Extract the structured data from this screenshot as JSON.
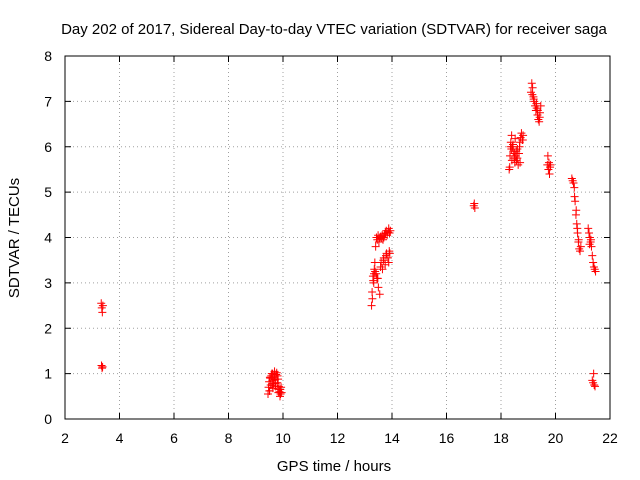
{
  "chart_data": {
    "type": "scatter",
    "title": "Day 202 of 2017, Sidereal Day-to-day VTEC variation (SDTVAR) for receiver saga",
    "xlabel": "GPS time / hours",
    "ylabel": "SDTVAR / TECUs",
    "xlim": [
      2,
      22
    ],
    "ylim": [
      0,
      8
    ],
    "xticks": [
      "2",
      "4",
      "6",
      "8",
      "10",
      "12",
      "14",
      "16",
      "18",
      "20",
      "22"
    ],
    "yticks": [
      "0",
      "1",
      "2",
      "3",
      "4",
      "5",
      "6",
      "7",
      "8"
    ],
    "grid": true,
    "marker": "plus",
    "color": "#ff0000",
    "series": [
      {
        "name": "SDTVAR",
        "x": [
          3.33,
          3.35,
          3.37,
          3.39,
          3.34,
          3.36,
          3.38,
          9.45,
          9.47,
          9.49,
          9.51,
          9.53,
          9.55,
          9.57,
          9.59,
          9.61,
          9.63,
          9.65,
          9.67,
          9.69,
          9.71,
          9.73,
          9.75,
          9.77,
          9.79,
          9.81,
          9.83,
          9.85,
          9.87,
          9.89,
          9.91,
          9.93,
          9.5,
          9.6,
          9.7,
          9.8,
          9.9,
          9.95,
          9.52,
          9.62,
          9.72,
          9.82,
          13.25,
          13.28,
          13.31,
          13.34,
          13.37,
          13.4,
          13.43,
          13.46,
          13.49,
          13.52,
          13.55,
          13.58,
          13.61,
          13.64,
          13.67,
          13.7,
          13.73,
          13.76,
          13.79,
          13.82,
          13.85,
          13.88,
          13.91,
          13.94,
          13.3,
          13.35,
          13.45,
          13.55,
          13.65,
          13.75,
          13.85,
          13.92,
          13.33,
          13.42,
          13.5,
          13.6,
          13.7,
          13.8,
          13.9,
          13.38,
          13.48,
          13.58,
          13.68,
          13.78,
          13.88,
          13.27,
          17.0,
          17.02,
          17.04,
          18.3,
          18.33,
          18.36,
          18.39,
          18.42,
          18.45,
          18.48,
          18.51,
          18.54,
          18.57,
          18.6,
          18.63,
          18.66,
          18.69,
          18.72,
          18.75,
          18.78,
          18.81,
          18.35,
          18.4,
          18.5,
          18.6,
          18.7,
          18.32,
          18.44,
          18.56,
          18.68,
          18.8,
          18.38,
          18.52,
          19.1,
          19.13,
          19.16,
          19.19,
          19.22,
          19.25,
          19.28,
          19.31,
          19.34,
          19.37,
          19.4,
          19.43,
          19.46,
          19.15,
          19.2,
          19.3,
          19.35,
          19.42,
          19.7,
          19.72,
          19.74,
          19.76,
          19.78,
          19.8,
          19.82,
          20.6,
          20.63,
          20.66,
          20.69,
          20.72,
          20.75,
          20.78,
          20.81,
          20.84,
          20.87,
          20.9,
          20.93,
          20.7,
          20.8,
          20.85,
          20.76,
          21.2,
          21.23,
          21.26,
          21.29,
          21.32,
          21.35,
          21.38,
          21.41,
          21.44,
          21.47,
          21.3,
          21.25,
          21.4,
          21.35,
          21.38,
          21.42,
          21.45
        ],
        "y": [
          2.55,
          2.45,
          2.35,
          2.5,
          1.18,
          1.12,
          1.15,
          0.55,
          0.7,
          0.82,
          0.62,
          0.9,
          0.75,
          0.95,
          1.0,
          0.85,
          0.68,
          0.78,
          0.92,
          1.05,
          0.88,
          0.72,
          0.98,
          1.02,
          0.8,
          0.66,
          0.58,
          0.72,
          0.6,
          0.5,
          0.55,
          0.7,
          0.62,
          0.74,
          0.86,
          0.95,
          0.65,
          0.58,
          0.92,
          1.0,
          0.78,
          0.88,
          2.5,
          2.65,
          3.05,
          3.2,
          3.45,
          3.8,
          4.0,
          3.95,
          4.05,
          3.9,
          4.0,
          4.02,
          3.98,
          4.05,
          3.95,
          4.0,
          4.08,
          4.1,
          4.15,
          4.05,
          4.12,
          4.2,
          4.1,
          4.15,
          3.15,
          3.3,
          3.1,
          2.75,
          3.3,
          3.4,
          3.55,
          3.65,
          3.0,
          3.2,
          2.9,
          3.45,
          3.55,
          3.65,
          3.7,
          3.25,
          3.1,
          3.35,
          3.5,
          3.6,
          3.45,
          2.8,
          4.7,
          4.75,
          4.65,
          5.5,
          5.8,
          6.1,
          6.25,
          6.0,
          5.9,
          5.75,
          5.65,
          5.8,
          5.7,
          5.95,
          5.6,
          5.85,
          6.1,
          6.2,
          6.3,
          6.15,
          6.25,
          6.0,
          5.7,
          5.85,
          5.75,
          5.65,
          5.55,
          6.05,
          5.9,
          6.0,
          6.15,
          5.95,
          6.18,
          7.2,
          7.4,
          7.3,
          7.1,
          7.0,
          6.9,
          6.8,
          6.85,
          6.7,
          6.6,
          6.55,
          6.75,
          6.9,
          7.15,
          7.05,
          6.95,
          6.8,
          6.65,
          5.6,
          5.8,
          5.5,
          5.65,
          5.4,
          5.55,
          5.6,
          5.3,
          5.25,
          5.2,
          5.1,
          4.8,
          4.5,
          4.3,
          4.1,
          3.9,
          3.75,
          3.7,
          3.8,
          4.9,
          4.2,
          3.95,
          4.6,
          4.2,
          4.1,
          4.0,
          3.9,
          3.8,
          3.6,
          3.45,
          3.35,
          3.3,
          3.25,
          3.95,
          3.85,
          1.0,
          0.85,
          0.8,
          0.75,
          0.72
        ]
      }
    ]
  }
}
